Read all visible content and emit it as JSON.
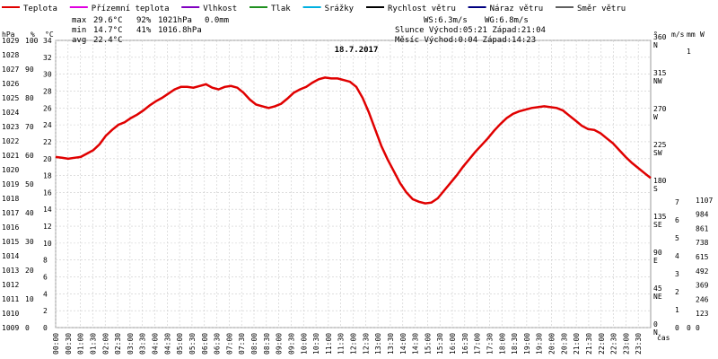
{
  "chart_data": {
    "type": "line",
    "title": "18.7.2017",
    "legend": [
      {
        "label": "Teplota",
        "color": "#e00000"
      },
      {
        "label": "Přízemní teplota",
        "color": "#e000e0"
      },
      {
        "label": "Vlhkost",
        "color": "#8000c0"
      },
      {
        "label": "Tlak",
        "color": "#209020"
      },
      {
        "label": "Srážky",
        "color": "#00b0e0"
      },
      {
        "label": "Rychlost větru",
        "color": "#000000"
      },
      {
        "label": "Náraz větru",
        "color": "#000080"
      },
      {
        "label": "Směr větru",
        "color": "#606060"
      }
    ],
    "stats": {
      "max_label": "max",
      "max_temp": "29.6°C",
      "max_hum": "92%",
      "max_press": "1021hPa",
      "max_rain": "0.0mm",
      "min_label": "min",
      "min_temp": "14.7°C",
      "min_hum": "41%",
      "min_press": "1016.8hPa",
      "avg_label": "avg",
      "avg_temp": "22.4°C"
    },
    "info": {
      "ws": "WS:6.3m/s",
      "wg": "WG:6.8m/s",
      "sun": "Slunce Východ:05:21  Západ:21:04",
      "moon": "Měsíc  Východ:0:04   Západ:14:23"
    },
    "axis_units": {
      "hpa": "hPa",
      "pct": "%",
      "celsius": "°C",
      "deg": "°",
      "ms": "m/s",
      "mm": "mm",
      "w": "W",
      "time": "čas"
    },
    "x_ticks": [
      "00:00",
      "00:30",
      "01:00",
      "01:30",
      "02:00",
      "02:30",
      "03:00",
      "03:30",
      "04:00",
      "04:30",
      "05:00",
      "05:30",
      "06:00",
      "06:30",
      "07:00",
      "07:30",
      "08:00",
      "08:30",
      "09:00",
      "09:30",
      "10:00",
      "10:30",
      "11:00",
      "11:30",
      "12:00",
      "12:30",
      "13:00",
      "13:30",
      "14:00",
      "14:30",
      "15:00",
      "15:30",
      "16:00",
      "16:30",
      "17:00",
      "17:30",
      "18:00",
      "18:30",
      "19:00",
      "19:30",
      "20:00",
      "20:30",
      "21:00",
      "21:30",
      "22:00",
      "22:30",
      "23:00",
      "23:30"
    ],
    "pressure_ticks": [
      "1009",
      "1010",
      "1011",
      "1012",
      "1013",
      "1014",
      "1015",
      "1016",
      "1017",
      "1018",
      "1019",
      "1020",
      "1021",
      "1022",
      "1023",
      "1024",
      "1025",
      "1026",
      "1027",
      "1028",
      "1029"
    ],
    "humidity_ticks": [
      "0",
      "10",
      "20",
      "30",
      "40",
      "50",
      "60",
      "70",
      "80",
      "90",
      "100"
    ],
    "temp_ticks": [
      "0",
      "2",
      "4",
      "6",
      "8",
      "10",
      "12",
      "14",
      "16",
      "18",
      "20",
      "22",
      "24",
      "26",
      "28",
      "30",
      "32",
      "34"
    ],
    "dir_ticks": [
      {
        "deg": "0",
        "label": "N"
      },
      {
        "deg": "45",
        "label": "NE"
      },
      {
        "deg": "90",
        "label": "E"
      },
      {
        "deg": "135",
        "label": "SE"
      },
      {
        "deg": "180",
        "label": "S"
      },
      {
        "deg": "225",
        "label": "SW"
      },
      {
        "deg": "270",
        "label": "W"
      },
      {
        "deg": "315",
        "label": "NW"
      },
      {
        "deg": "360",
        "label": "N"
      }
    ],
    "wind_ticks": [
      "0",
      "1",
      "2",
      "3",
      "4",
      "5",
      "6",
      "7"
    ],
    "rain_ticks": [
      "0",
      "1"
    ],
    "solar_ticks": [
      "0",
      "123",
      "246",
      "369",
      "492",
      "615",
      "738",
      "861",
      "984",
      "1107"
    ],
    "temperature": [
      [
        0,
        20.2
      ],
      [
        1,
        20.1
      ],
      [
        2,
        20.0
      ],
      [
        3,
        20.1
      ],
      [
        4,
        20.2
      ],
      [
        5,
        20.6
      ],
      [
        6,
        21.0
      ],
      [
        7,
        21.7
      ],
      [
        8,
        22.7
      ],
      [
        9,
        23.4
      ],
      [
        10,
        24.0
      ],
      [
        11,
        24.3
      ],
      [
        12,
        24.8
      ],
      [
        13,
        25.2
      ],
      [
        14,
        25.7
      ],
      [
        15,
        26.3
      ],
      [
        16,
        26.8
      ],
      [
        17,
        27.2
      ],
      [
        18,
        27.7
      ],
      [
        19,
        28.2
      ],
      [
        20,
        28.5
      ],
      [
        21,
        28.5
      ],
      [
        22,
        28.4
      ],
      [
        23,
        28.6
      ],
      [
        24,
        28.8
      ],
      [
        25,
        28.4
      ],
      [
        26,
        28.2
      ],
      [
        27,
        28.5
      ],
      [
        28,
        28.6
      ],
      [
        29,
        28.4
      ],
      [
        30,
        27.8
      ],
      [
        31,
        27.0
      ],
      [
        32,
        26.4
      ],
      [
        33,
        26.2
      ],
      [
        34,
        26.0
      ],
      [
        35,
        26.2
      ],
      [
        36,
        26.5
      ],
      [
        37,
        27.1
      ],
      [
        38,
        27.8
      ],
      [
        39,
        28.2
      ],
      [
        40,
        28.5
      ],
      [
        41,
        29.0
      ],
      [
        42,
        29.4
      ],
      [
        43,
        29.6
      ],
      [
        44,
        29.5
      ],
      [
        45,
        29.5
      ],
      [
        46,
        29.3
      ],
      [
        47,
        29.1
      ],
      [
        48,
        28.5
      ],
      [
        49,
        27.2
      ],
      [
        50,
        25.5
      ],
      [
        51,
        23.5
      ],
      [
        52,
        21.5
      ],
      [
        53,
        19.9
      ],
      [
        54,
        18.5
      ],
      [
        55,
        17.1
      ],
      [
        56,
        16.0
      ],
      [
        57,
        15.2
      ],
      [
        58,
        14.9
      ],
      [
        59,
        14.7
      ],
      [
        60,
        14.8
      ],
      [
        61,
        15.3
      ],
      [
        62,
        16.2
      ],
      [
        63,
        17.1
      ],
      [
        64,
        18.0
      ],
      [
        65,
        19.0
      ],
      [
        66,
        19.9
      ],
      [
        67,
        20.8
      ],
      [
        68,
        21.6
      ],
      [
        69,
        22.4
      ],
      [
        70,
        23.3
      ],
      [
        71,
        24.1
      ],
      [
        72,
        24.8
      ],
      [
        73,
        25.3
      ],
      [
        74,
        25.6
      ],
      [
        75,
        25.8
      ],
      [
        76,
        26.0
      ],
      [
        77,
        26.1
      ],
      [
        78,
        26.2
      ],
      [
        79,
        26.1
      ],
      [
        80,
        26.0
      ],
      [
        81,
        25.7
      ],
      [
        82,
        25.1
      ],
      [
        83,
        24.5
      ],
      [
        84,
        23.9
      ],
      [
        85,
        23.5
      ],
      [
        86,
        23.4
      ],
      [
        87,
        23.0
      ],
      [
        88,
        22.4
      ],
      [
        89,
        21.8
      ],
      [
        90,
        21.0
      ],
      [
        91,
        20.2
      ],
      [
        92,
        19.5
      ],
      [
        93,
        18.9
      ],
      [
        94,
        18.3
      ],
      [
        95,
        17.7
      ]
    ]
  }
}
